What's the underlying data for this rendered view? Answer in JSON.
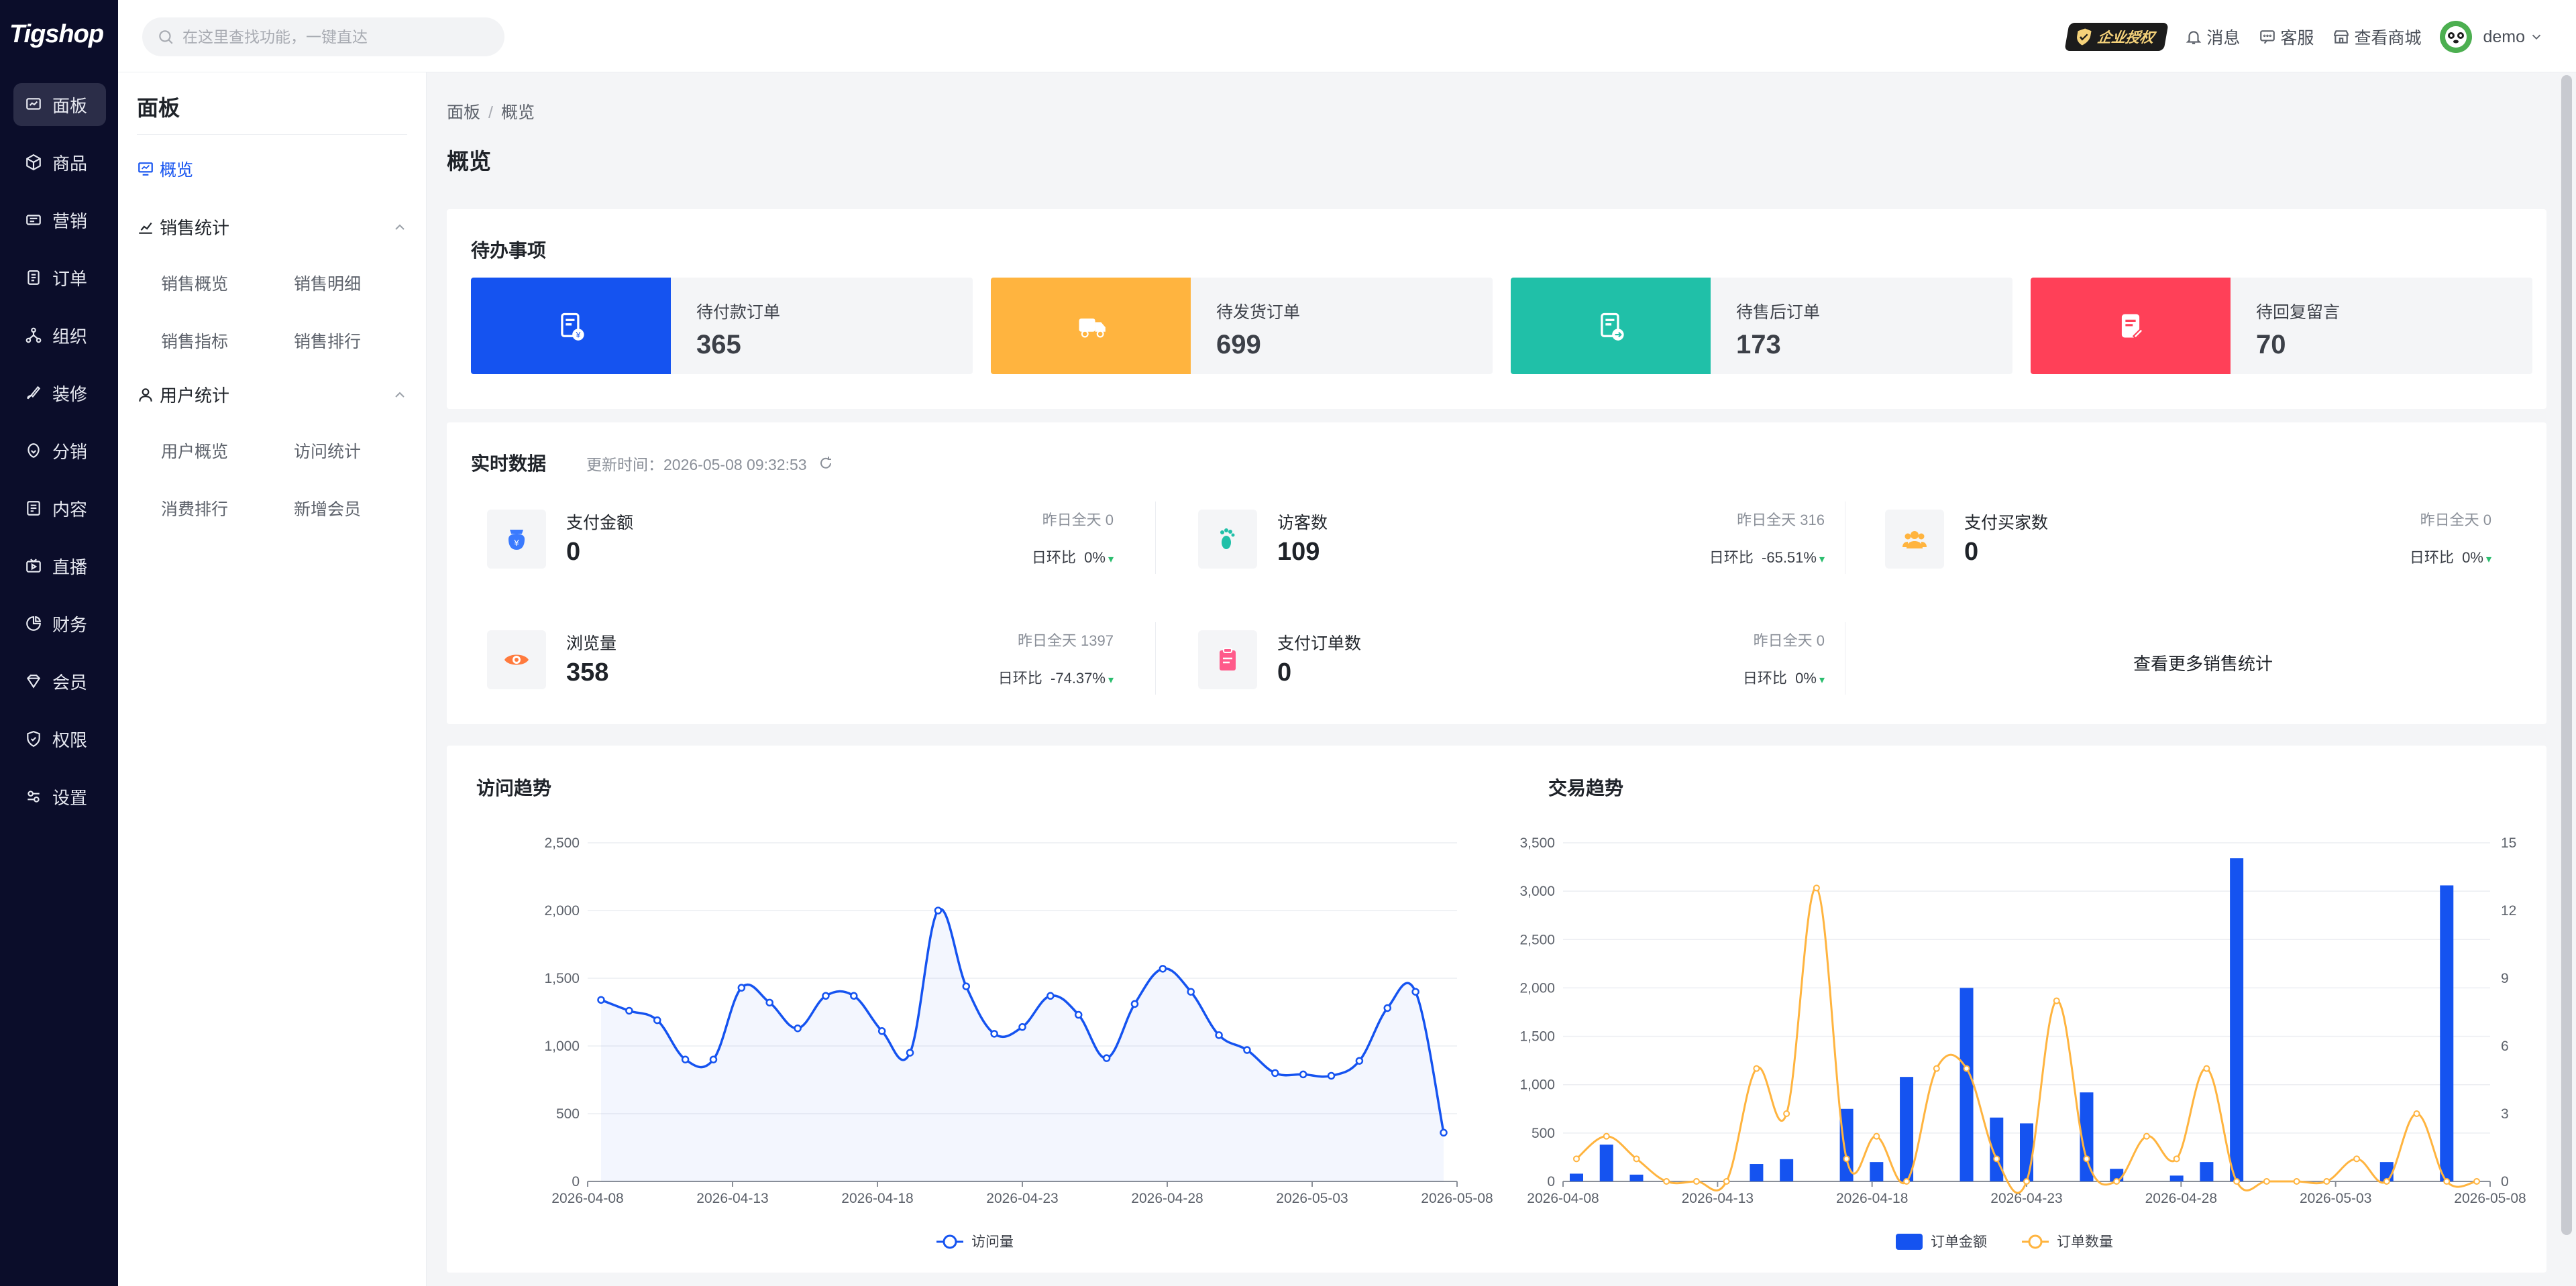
{
  "app": {
    "logo": "Tigshop"
  },
  "rail": {
    "items": [
      {
        "label": "面板",
        "icon": "dashboard-icon"
      },
      {
        "label": "商品",
        "icon": "box-icon"
      },
      {
        "label": "营销",
        "icon": "megaphone-icon"
      },
      {
        "label": "订单",
        "icon": "order-icon"
      },
      {
        "label": "组织",
        "icon": "org-icon"
      },
      {
        "label": "装修",
        "icon": "brush-icon"
      },
      {
        "label": "分销",
        "icon": "share-icon"
      },
      {
        "label": "内容",
        "icon": "doc-icon"
      },
      {
        "label": "直播",
        "icon": "live-icon"
      },
      {
        "label": "财务",
        "icon": "pie-icon"
      },
      {
        "label": "会员",
        "icon": "member-icon"
      },
      {
        "label": "权限",
        "icon": "shield-icon"
      },
      {
        "label": "设置",
        "icon": "settings-icon"
      }
    ]
  },
  "search": {
    "placeholder": "在这里查找功能，一键直达"
  },
  "topbar": {
    "auth_badge": "企业授权",
    "messages": "消息",
    "support": "客服",
    "view_store": "查看商城",
    "user": "demo"
  },
  "subnav": {
    "title": "面板",
    "overview": "概览",
    "sales_group": "销售统计",
    "sales_items": [
      "销售概览",
      "销售明细",
      "销售指标",
      "销售排行"
    ],
    "user_group": "用户统计",
    "user_items": [
      "用户概览",
      "访问统计",
      "消费排行",
      "新增会员"
    ]
  },
  "breadcrumb": {
    "root": "面板",
    "sep": "/",
    "current": "概览"
  },
  "page_title": "概览",
  "todo": {
    "title": "待办事项",
    "items": [
      {
        "label": "待付款订单",
        "value": "365",
        "color": "#1553f0",
        "icon": "payment-icon"
      },
      {
        "label": "待发货订单",
        "value": "699",
        "color": "#ffb43f",
        "icon": "truck-icon"
      },
      {
        "label": "待售后订单",
        "value": "173",
        "color": "#20c0a8",
        "icon": "return-icon"
      },
      {
        "label": "待回复留言",
        "value": "70",
        "color": "#ff4058",
        "icon": "message-icon"
      }
    ]
  },
  "realtime": {
    "title": "实时数据",
    "update_label": "更新时间：2026-05-08 09:32:53",
    "ratio_label": "日环比",
    "items": [
      {
        "label": "支付金额",
        "value": "0",
        "yesterday": "昨日全天  0",
        "ratio": "0%"
      },
      {
        "label": "访客数",
        "value": "109",
        "yesterday": "昨日全天  316",
        "ratio": "-65.51%"
      },
      {
        "label": "支付买家数",
        "value": "0",
        "yesterday": "昨日全天  0",
        "ratio": "0%"
      },
      {
        "label": "浏览量",
        "value": "358",
        "yesterday": "昨日全天  1397",
        "ratio": "-74.37%"
      },
      {
        "label": "支付订单数",
        "value": "0",
        "yesterday": "昨日全天  0",
        "ratio": "0%"
      }
    ],
    "more_link": "查看更多销售统计"
  },
  "chart_data": [
    {
      "type": "line",
      "title": "访问趋势",
      "x_ticks": [
        "2026-04-08",
        "2026-04-13",
        "2026-04-18",
        "2026-04-23",
        "2026-04-28",
        "2026-05-03",
        "2026-05-08"
      ],
      "y_ticks": [
        "0",
        "500",
        "1,000",
        "1,500",
        "2,000",
        "2,500"
      ],
      "ylim": [
        0,
        2500
      ],
      "series": [
        {
          "name": "访问量",
          "color": "#1553f0",
          "values": [
            1340,
            1260,
            1190,
            900,
            900,
            1430,
            1320,
            1130,
            1370,
            1370,
            1110,
            950,
            2000,
            1440,
            1090,
            1140,
            1370,
            1230,
            910,
            1310,
            1570,
            1400,
            1080,
            970,
            800,
            790,
            780,
            890,
            1280,
            1400,
            360
          ]
        }
      ],
      "grid": true,
      "legend": "bottom"
    },
    {
      "type": "bar",
      "title": "交易趋势",
      "x_ticks": [
        "2026-04-08",
        "2026-04-13",
        "2026-04-18",
        "2026-04-23",
        "2026-04-28",
        "2026-05-03",
        "2026-05-08"
      ],
      "y_ticks": [
        "0",
        "500",
        "1,000",
        "1,500",
        "2,000",
        "2,500",
        "3,000",
        "3,500"
      ],
      "y2_ticks": [
        "0",
        "3",
        "6",
        "9",
        "12",
        "15"
      ],
      "ylim": [
        0,
        3500
      ],
      "y2lim": [
        0,
        15
      ],
      "series": [
        {
          "name": "订单金额",
          "kind": "bar",
          "color": "#1553f0",
          "values": [
            80,
            380,
            70,
            0,
            0,
            0,
            180,
            230,
            0,
            750,
            200,
            1080,
            0,
            2000,
            660,
            600,
            0,
            920,
            130,
            0,
            60,
            200,
            3340,
            0,
            0,
            0,
            0,
            200,
            0,
            3060,
            0
          ]
        },
        {
          "name": "订单数量",
          "kind": "line",
          "color": "#ffb43f",
          "values": [
            1,
            2,
            1,
            0,
            0,
            0,
            5,
            3,
            13,
            1,
            2,
            0,
            5,
            5,
            1,
            0,
            8,
            1,
            0,
            2,
            1,
            5,
            0,
            0,
            0,
            0,
            1,
            0,
            3,
            0,
            0
          ]
        }
      ],
      "grid": true,
      "legend": "bottom"
    }
  ]
}
